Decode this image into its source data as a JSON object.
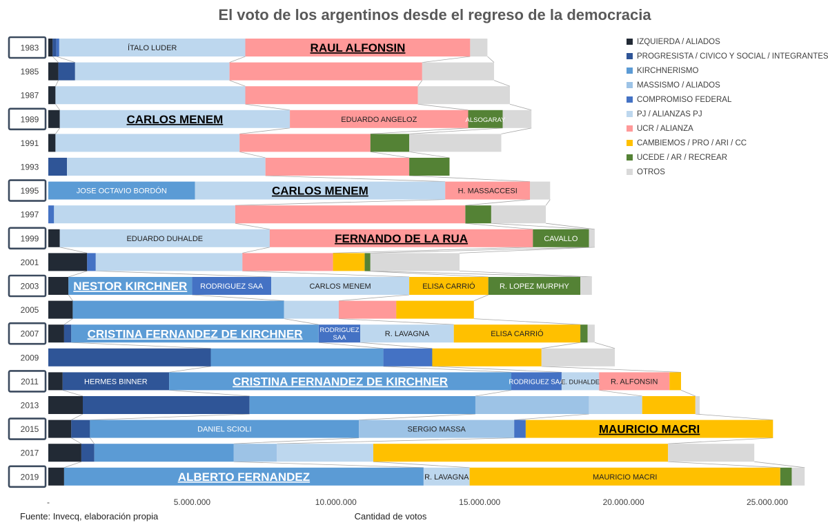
{
  "chart_data": {
    "type": "bar",
    "orientation": "horizontal",
    "stacked": true,
    "title": "El voto de los argentinos desde el regreso de la democracia",
    "xlabel": "Cantidad de votos",
    "source": "Fuente: Invecq, elaboración propia",
    "xlim": [
      0,
      26000000
    ],
    "xticks": [
      0,
      5000000,
      10000000,
      15000000,
      20000000,
      25000000
    ],
    "xtick_labels": [
      "-",
      "5.000.000",
      "10.000.000",
      "15.000.000",
      "20.000.000",
      "25.000.000"
    ],
    "grid": false,
    "legend_position": "right",
    "colors": {
      "IZQUIERDA": "#222a35",
      "PROGRESISTA": "#2f5597",
      "KIRCHNERISMO": "#5b9bd5",
      "MASSISMO": "#9dc3e6",
      "COMPROMISO": "#4472c4",
      "PJ": "#bdd7ee",
      "UCR": "#ff9999",
      "CAMBIEMOS": "#ffc000",
      "UCEDE": "#548235",
      "OTROS": "#d9d9d9"
    },
    "legend": [
      {
        "key": "IZQUIERDA",
        "label": "IZQUIERDA / ALIADOS"
      },
      {
        "key": "PROGRESISTA",
        "label": "PROGRESISTA / CIVICO Y SOCIAL / INTEGRANTES"
      },
      {
        "key": "KIRCHNERISMO",
        "label": "KIRCHNERISMO"
      },
      {
        "key": "MASSISMO",
        "label": "MASSISMO / ALIADOS"
      },
      {
        "key": "COMPROMISO",
        "label": "COMPROMISO FEDERAL"
      },
      {
        "key": "PJ",
        "label": "PJ / ALIANZAS PJ"
      },
      {
        "key": "UCR",
        "label": "UCR / ALIANZA"
      },
      {
        "key": "CAMBIEMOS",
        "label": "CAMBIEMOS / PRO / ARI / CC"
      },
      {
        "key": "UCEDE",
        "label": "UCEDE / AR / RECREAR"
      },
      {
        "key": "OTROS",
        "label": "OTROS"
      }
    ],
    "rows": [
      {
        "year": "1983",
        "presidential": true,
        "segments": [
          {
            "cat": "IZQUIERDA",
            "value": 150000
          },
          {
            "cat": "PROGRESISTA",
            "value": 130000
          },
          {
            "cat": "COMPROMISO",
            "value": 100000
          },
          {
            "cat": "PJ",
            "value": 6470000,
            "label": "ÍTALO LUDER"
          },
          {
            "cat": "UCR",
            "value": 7820000,
            "label": "RAUL ALFONSIN",
            "winner": true
          },
          {
            "cat": "OTROS",
            "value": 600000
          }
        ]
      },
      {
        "year": "1985",
        "segments": [
          {
            "cat": "IZQUIERDA",
            "value": 350000
          },
          {
            "cat": "PROGRESISTA",
            "value": 580000
          },
          {
            "cat": "PJ",
            "value": 5370000
          },
          {
            "cat": "UCR",
            "value": 6700000
          },
          {
            "cat": "OTROS",
            "value": 2500000
          }
        ]
      },
      {
        "year": "1987",
        "segments": [
          {
            "cat": "IZQUIERDA",
            "value": 250000
          },
          {
            "cat": "PJ",
            "value": 6600000
          },
          {
            "cat": "UCR",
            "value": 6000000
          },
          {
            "cat": "OTROS",
            "value": 3200000
          }
        ]
      },
      {
        "year": "1989",
        "presidential": true,
        "segments": [
          {
            "cat": "IZQUIERDA",
            "value": 400000
          },
          {
            "cat": "PJ",
            "value": 8000000,
            "label": "CARLOS MENEM",
            "winner": true
          },
          {
            "cat": "UCR",
            "value": 6200000,
            "label": "EDUARDO ANGELOZ"
          },
          {
            "cat": "UCEDE",
            "value": 1200000,
            "label": "ALSOGARAY"
          },
          {
            "cat": "OTROS",
            "value": 1000000
          }
        ]
      },
      {
        "year": "1991",
        "segments": [
          {
            "cat": "IZQUIERDA",
            "value": 250000
          },
          {
            "cat": "PJ",
            "value": 6400000
          },
          {
            "cat": "UCR",
            "value": 4550000
          },
          {
            "cat": "UCEDE",
            "value": 1350000
          },
          {
            "cat": "OTROS",
            "value": 3200000
          }
        ]
      },
      {
        "year": "1993",
        "segments": [
          {
            "cat": "PROGRESISTA",
            "value": 650000
          },
          {
            "cat": "PJ",
            "value": 6900000
          },
          {
            "cat": "UCR",
            "value": 5000000
          },
          {
            "cat": "UCEDE",
            "value": 1400000
          }
        ]
      },
      {
        "year": "1995",
        "presidential": true,
        "segments": [
          {
            "cat": "KIRCHNERISMO",
            "value": 5100000,
            "label": "JOSE OCTAVIO BORDÓN"
          },
          {
            "cat": "PJ",
            "value": 8700000,
            "label": "CARLOS MENEM",
            "winner": true
          },
          {
            "cat": "UCR",
            "value": 2950000,
            "label": "H. MASSACCESI"
          },
          {
            "cat": "OTROS",
            "value": 700000
          }
        ]
      },
      {
        "year": "1997",
        "segments": [
          {
            "cat": "COMPROMISO",
            "value": 200000
          },
          {
            "cat": "PJ",
            "value": 6300000
          },
          {
            "cat": "UCR",
            "value": 8000000
          },
          {
            "cat": "UCEDE",
            "value": 900000
          },
          {
            "cat": "OTROS",
            "value": 1900000
          }
        ]
      },
      {
        "year": "1999",
        "presidential": true,
        "segments": [
          {
            "cat": "IZQUIERDA",
            "value": 400000
          },
          {
            "cat": "PJ",
            "value": 7300000,
            "label": "EDUARDO DUHALDE"
          },
          {
            "cat": "UCR",
            "value": 9150000,
            "label": "FERNANDO DE LA RUA",
            "winner": true
          },
          {
            "cat": "UCEDE",
            "value": 1950000,
            "label": "CAVALLO"
          },
          {
            "cat": "OTROS",
            "value": 200000
          }
        ]
      },
      {
        "year": "2001",
        "segments": [
          {
            "cat": "IZQUIERDA",
            "value": 1350000
          },
          {
            "cat": "COMPROMISO",
            "value": 300000
          },
          {
            "cat": "PJ",
            "value": 5100000
          },
          {
            "cat": "UCR",
            "value": 3150000
          },
          {
            "cat": "CAMBIEMOS",
            "value": 1100000
          },
          {
            "cat": "UCEDE",
            "value": 200000
          },
          {
            "cat": "OTROS",
            "value": 3100000
          }
        ]
      },
      {
        "year": "2003",
        "presidential": true,
        "segments": [
          {
            "cat": "IZQUIERDA",
            "value": 700000
          },
          {
            "cat": "KIRCHNERISMO",
            "value": 4300000,
            "label": "NESTOR KIRCHNER",
            "winner": true
          },
          {
            "cat": "COMPROMISO",
            "value": 2750000,
            "label": "RODRIGUEZ SAA"
          },
          {
            "cat": "PJ",
            "value": 4800000,
            "label": "CARLOS MENEM"
          },
          {
            "cat": "CAMBIEMOS",
            "value": 2750000,
            "label": "ELISA CARRIÓ"
          },
          {
            "cat": "UCEDE",
            "value": 3200000,
            "label": "R. LOPEZ MURPHY"
          },
          {
            "cat": "OTROS",
            "value": 400000
          }
        ]
      },
      {
        "year": "2005",
        "segments": [
          {
            "cat": "IZQUIERDA",
            "value": 850000
          },
          {
            "cat": "KIRCHNERISMO",
            "value": 7350000
          },
          {
            "cat": "PJ",
            "value": 1900000
          },
          {
            "cat": "UCR",
            "value": 2000000
          },
          {
            "cat": "CAMBIEMOS",
            "value": 2700000
          }
        ]
      },
      {
        "year": "2007",
        "presidential": true,
        "segments": [
          {
            "cat": "IZQUIERDA",
            "value": 550000
          },
          {
            "cat": "PROGRESISTA",
            "value": 250000
          },
          {
            "cat": "KIRCHNERISMO",
            "value": 8600000,
            "label": "CRISTINA FERNANDEZ DE KIRCHNER",
            "winner": true
          },
          {
            "cat": "COMPROMISO",
            "value": 1450000,
            "label": "RODRIGUEZ SAA"
          },
          {
            "cat": "PJ",
            "value": 3250000,
            "label": "R. LAVAGNA"
          },
          {
            "cat": "CAMBIEMOS",
            "value": 4400000,
            "label": "ELISA CARRIÓ"
          },
          {
            "cat": "UCEDE",
            "value": 250000
          },
          {
            "cat": "OTROS",
            "value": 250000
          }
        ]
      },
      {
        "year": "2009",
        "segments": [
          {
            "cat": "PROGRESISTA",
            "value": 5650000
          },
          {
            "cat": "KIRCHNERISMO",
            "value": 6000000
          },
          {
            "cat": "COMPROMISO",
            "value": 1700000
          },
          {
            "cat": "CAMBIEMOS",
            "value": 3800000
          },
          {
            "cat": "OTROS",
            "value": 2550000
          }
        ]
      },
      {
        "year": "2011",
        "presidential": true,
        "segments": [
          {
            "cat": "IZQUIERDA",
            "value": 500000
          },
          {
            "cat": "PROGRESISTA",
            "value": 3700000,
            "label": "HERMES BINNER"
          },
          {
            "cat": "KIRCHNERISMO",
            "value": 11900000,
            "label": "CRISTINA FERNANDEZ DE KIRCHNER",
            "winner": true
          },
          {
            "cat": "COMPROMISO",
            "value": 1750000,
            "label": "RODRIGUEZ SAA"
          },
          {
            "cat": "PJ",
            "value": 1300000,
            "label": "E. DUHALDE"
          },
          {
            "cat": "UCR",
            "value": 2450000,
            "label": "R. ALFONSIN"
          },
          {
            "cat": "CAMBIEMOS",
            "value": 400000
          }
        ]
      },
      {
        "year": "2013",
        "segments": [
          {
            "cat": "IZQUIERDA",
            "value": 1200000
          },
          {
            "cat": "PROGRESISTA",
            "value": 5800000
          },
          {
            "cat": "KIRCHNERISMO",
            "value": 7850000
          },
          {
            "cat": "MASSISMO",
            "value": 3950000
          },
          {
            "cat": "PJ",
            "value": 1850000
          },
          {
            "cat": "CAMBIEMOS",
            "value": 1850000
          },
          {
            "cat": "OTROS",
            "value": 150000
          }
        ]
      },
      {
        "year": "2015",
        "presidential": true,
        "segments": [
          {
            "cat": "IZQUIERDA",
            "value": 800000
          },
          {
            "cat": "PROGRESISTA",
            "value": 650000
          },
          {
            "cat": "KIRCHNERISMO",
            "value": 9350000,
            "label": "DANIEL SCIOLI"
          },
          {
            "cat": "MASSISMO",
            "value": 5400000,
            "label": "SERGIO MASSA"
          },
          {
            "cat": "COMPROMISO",
            "value": 400000
          },
          {
            "cat": "CAMBIEMOS",
            "value": 8600000,
            "label": "MAURICIO MACRI",
            "winner": true
          }
        ]
      },
      {
        "year": "2017",
        "segments": [
          {
            "cat": "IZQUIERDA",
            "value": 1150000
          },
          {
            "cat": "PROGRESISTA",
            "value": 450000
          },
          {
            "cat": "KIRCHNERISMO",
            "value": 4850000
          },
          {
            "cat": "MASSISMO",
            "value": 1500000
          },
          {
            "cat": "PJ",
            "value": 3350000
          },
          {
            "cat": "CAMBIEMOS",
            "value": 10250000
          },
          {
            "cat": "OTROS",
            "value": 3000000
          }
        ]
      },
      {
        "year": "2019",
        "presidential": true,
        "segments": [
          {
            "cat": "IZQUIERDA",
            "value": 550000
          },
          {
            "cat": "KIRCHNERISMO",
            "value": 12500000,
            "label": "ALBERTO FERNANDEZ",
            "winner": true
          },
          {
            "cat": "PJ",
            "value": 1600000,
            "label": "R. LAVAGNA"
          },
          {
            "cat": "CAMBIEMOS",
            "value": 10800000,
            "label": "MAURICIO MACRI"
          },
          {
            "cat": "UCEDE",
            "value": 400000
          },
          {
            "cat": "OTROS",
            "value": 450000
          }
        ]
      }
    ]
  }
}
